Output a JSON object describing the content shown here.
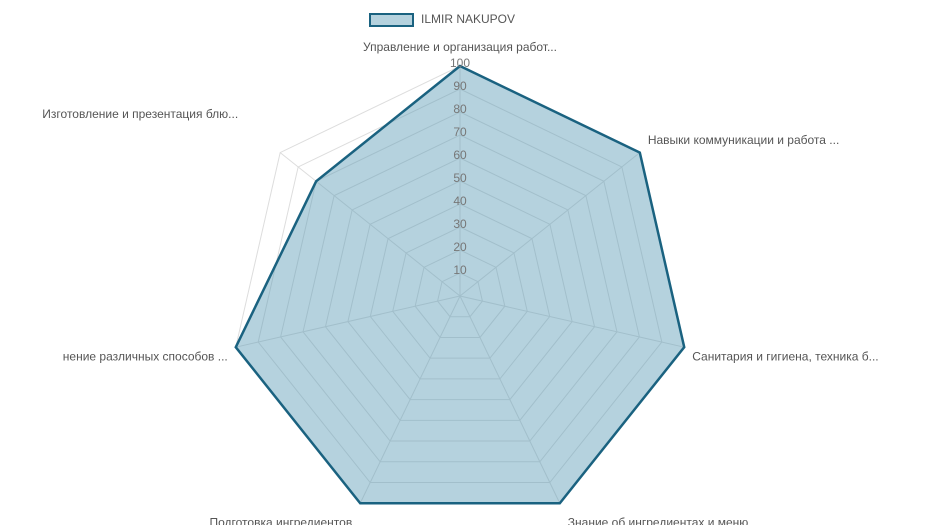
{
  "chart_data": {
    "type": "radar",
    "categories": [
      "Управление и организация работ...",
      "Навыки  коммуникации и работа ...",
      "Санитария и гигиена, техника б...",
      "Знание об ингредиентах и меню",
      "Подготовка ингредиентов",
      "нение различных способов ...",
      "Изготовление и презентация блю..."
    ],
    "series": [
      {
        "name": "ILMIR NAKUPOV",
        "color": "#1a6280",
        "fill": "rgba(91,155,181,0.45)",
        "values": [
          100,
          100,
          100,
          100,
          100,
          100,
          80
        ]
      }
    ],
    "ylim": [
      0,
      100
    ],
    "yticks": [
      10,
      20,
      30,
      40,
      50,
      60,
      70,
      80,
      90,
      100
    ],
    "grid": true,
    "legend": "top"
  }
}
